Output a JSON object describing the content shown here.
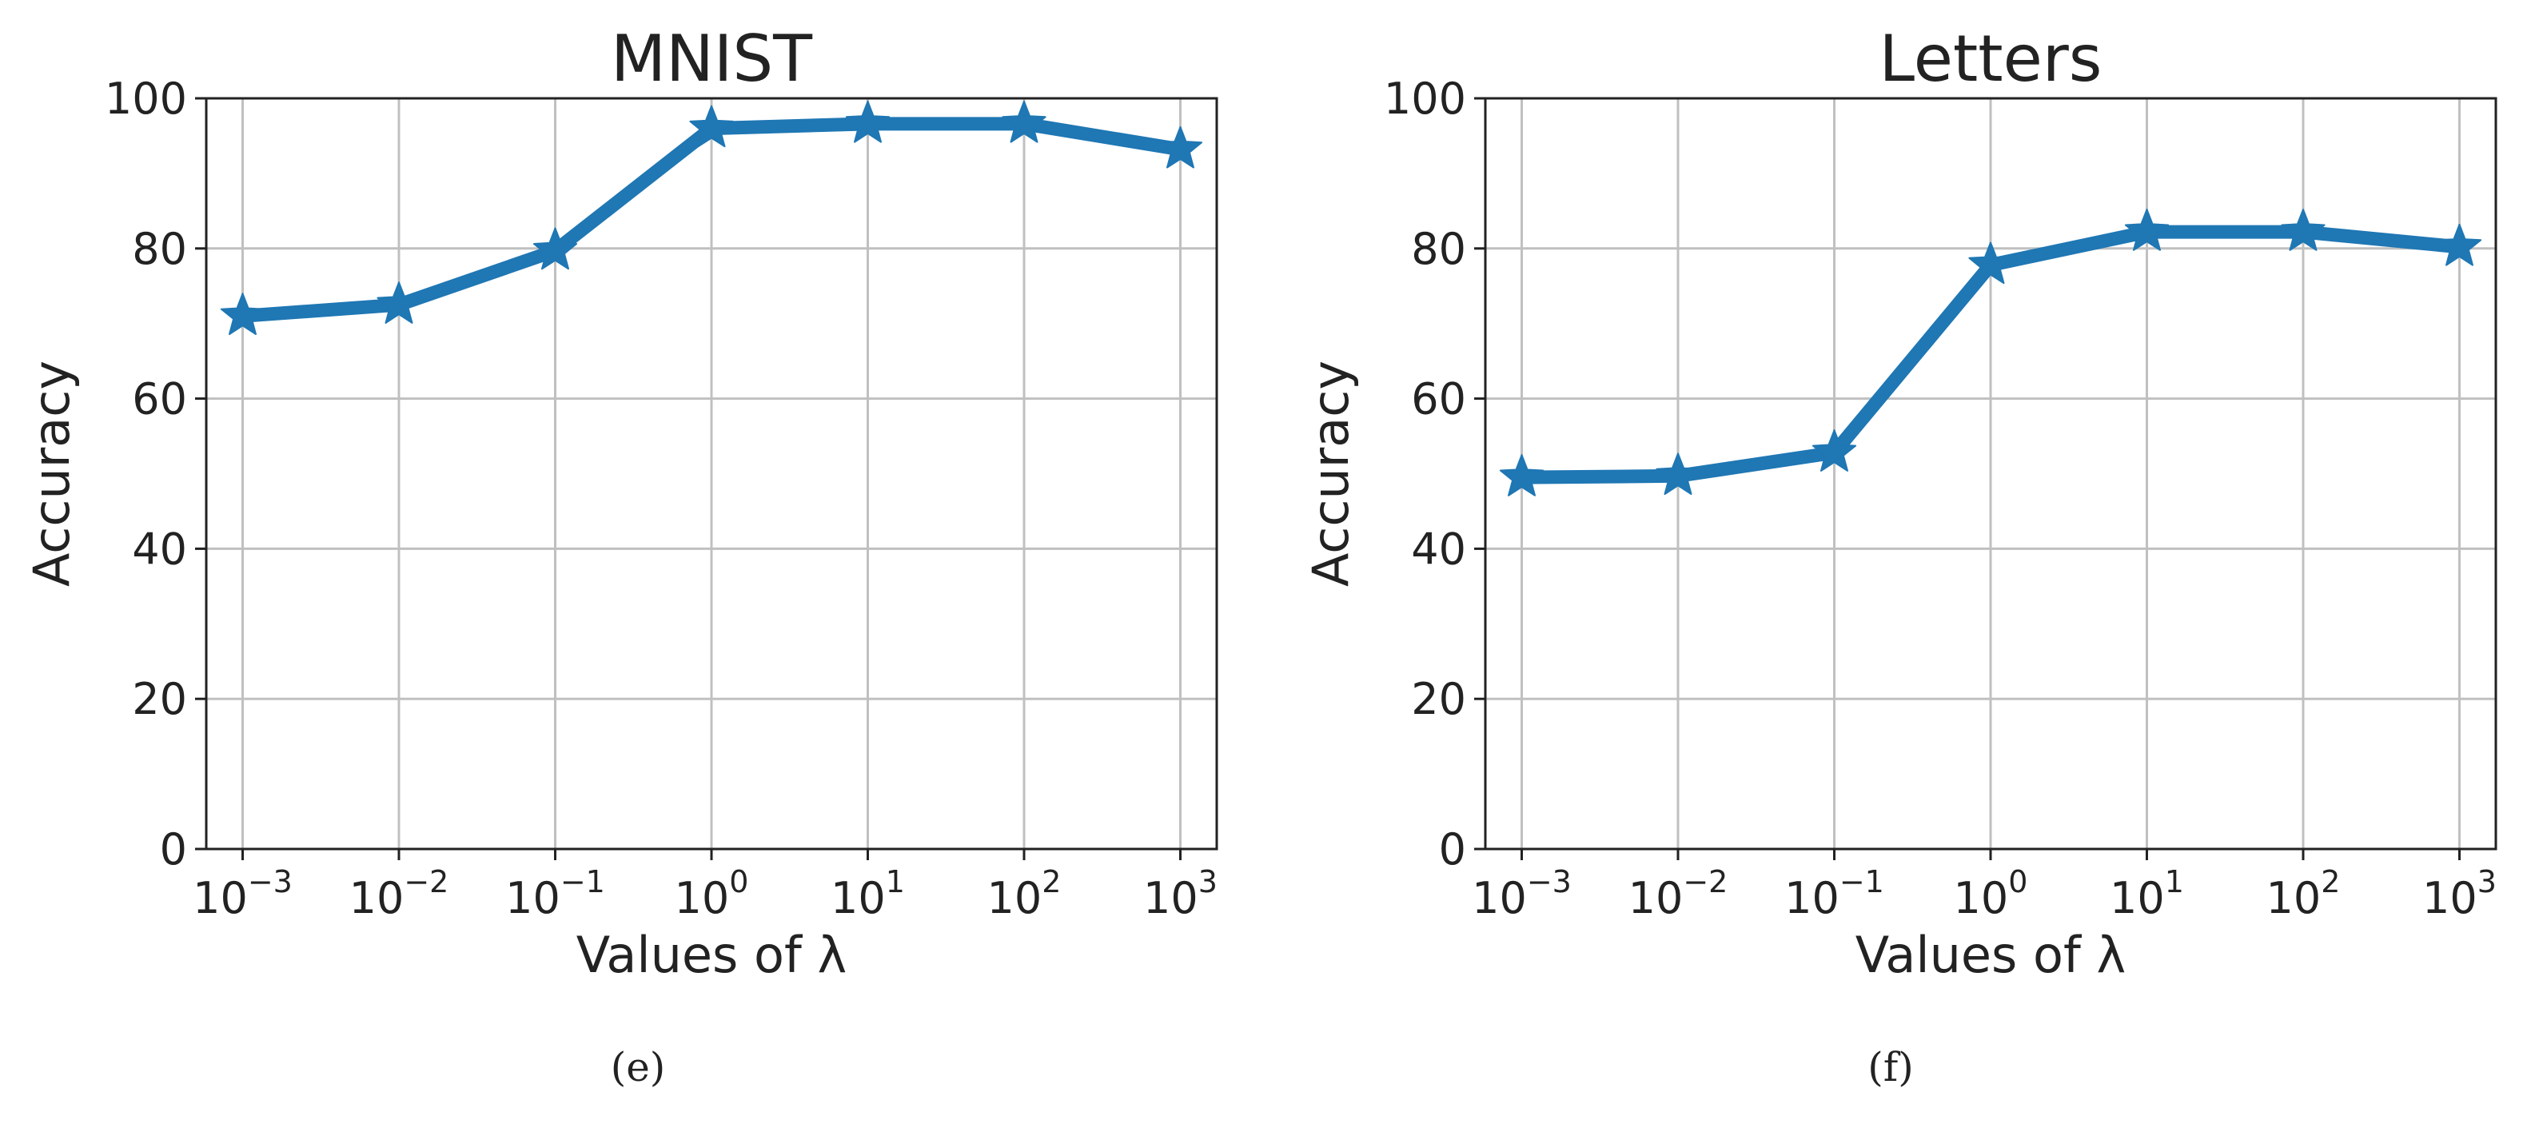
{
  "chart_data": [
    {
      "type": "line",
      "title": "MNIST",
      "xlabel": "Values of λ",
      "ylabel": "Accuracy",
      "x_scale": "log",
      "x": [
        0.001,
        0.01,
        0.1,
        1,
        10,
        100,
        1000
      ],
      "x_tick_labels": [
        {
          "base": "10",
          "exp": "−3"
        },
        {
          "base": "10",
          "exp": "−2"
        },
        {
          "base": "10",
          "exp": "−1"
        },
        {
          "base": "10",
          "exp": "0"
        },
        {
          "base": "10",
          "exp": "1"
        },
        {
          "base": "10",
          "exp": "2"
        },
        {
          "base": "10",
          "exp": "3"
        }
      ],
      "y_ticks": [
        "0",
        "20",
        "40",
        "60",
        "80",
        "100"
      ],
      "ylim": [
        0,
        100
      ],
      "grid": true,
      "marker": "star",
      "color": "#1f77b4",
      "series": [
        {
          "values": [
            71.0,
            72.5,
            79.7,
            96.0,
            96.6,
            96.6,
            93.2
          ]
        }
      ],
      "caption": "(e)"
    },
    {
      "type": "line",
      "title": "Letters",
      "xlabel": "Values of λ",
      "ylabel": "Accuracy",
      "x_scale": "log",
      "x": [
        0.001,
        0.01,
        0.1,
        1,
        10,
        100,
        1000
      ],
      "x_tick_labels": [
        {
          "base": "10",
          "exp": "−3"
        },
        {
          "base": "10",
          "exp": "−2"
        },
        {
          "base": "10",
          "exp": "−1"
        },
        {
          "base": "10",
          "exp": "0"
        },
        {
          "base": "10",
          "exp": "1"
        },
        {
          "base": "10",
          "exp": "2"
        },
        {
          "base": "10",
          "exp": "3"
        }
      ],
      "y_ticks": [
        "0",
        "20",
        "40",
        "60",
        "80",
        "100"
      ],
      "ylim": [
        0,
        100
      ],
      "grid": true,
      "marker": "star",
      "color": "#1f77b4",
      "series": [
        {
          "values": [
            49.5,
            49.7,
            52.8,
            77.8,
            82.2,
            82.2,
            80.2
          ]
        }
      ],
      "caption": "(f)"
    }
  ]
}
